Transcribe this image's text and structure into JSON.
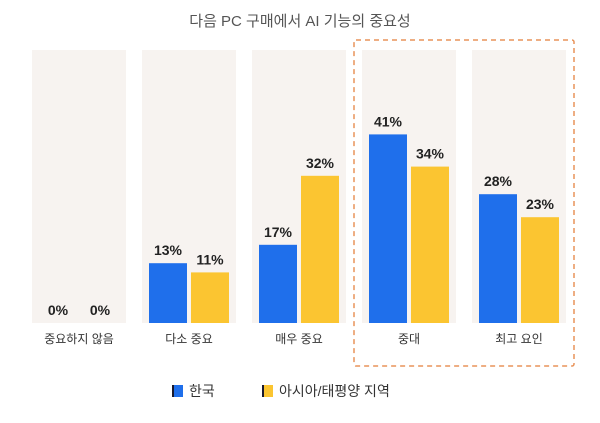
{
  "chart_data": {
    "type": "bar",
    "title": "다음 PC 구매에서 AI 기능의 중요성",
    "categories": [
      "중요하지 않음",
      "다소 중요",
      "매우 중요",
      "중대",
      "최고 요인"
    ],
    "series": [
      {
        "name": "한국",
        "values": [
          0,
          13,
          17,
          41,
          28
        ],
        "color": "#1f6feb"
      },
      {
        "name": "아시아/태평양 지역",
        "values": [
          0,
          11,
          32,
          34,
          23
        ],
        "color": "#fbc531"
      }
    ],
    "value_suffix": "%",
    "ylim": [
      0,
      50
    ],
    "highlighted_categories": [
      "중대",
      "최고 요인"
    ],
    "highlight_color": "#e8935a",
    "panel_color": "#f7f3f0",
    "legend_position": "bottom-center",
    "grid": false
  }
}
